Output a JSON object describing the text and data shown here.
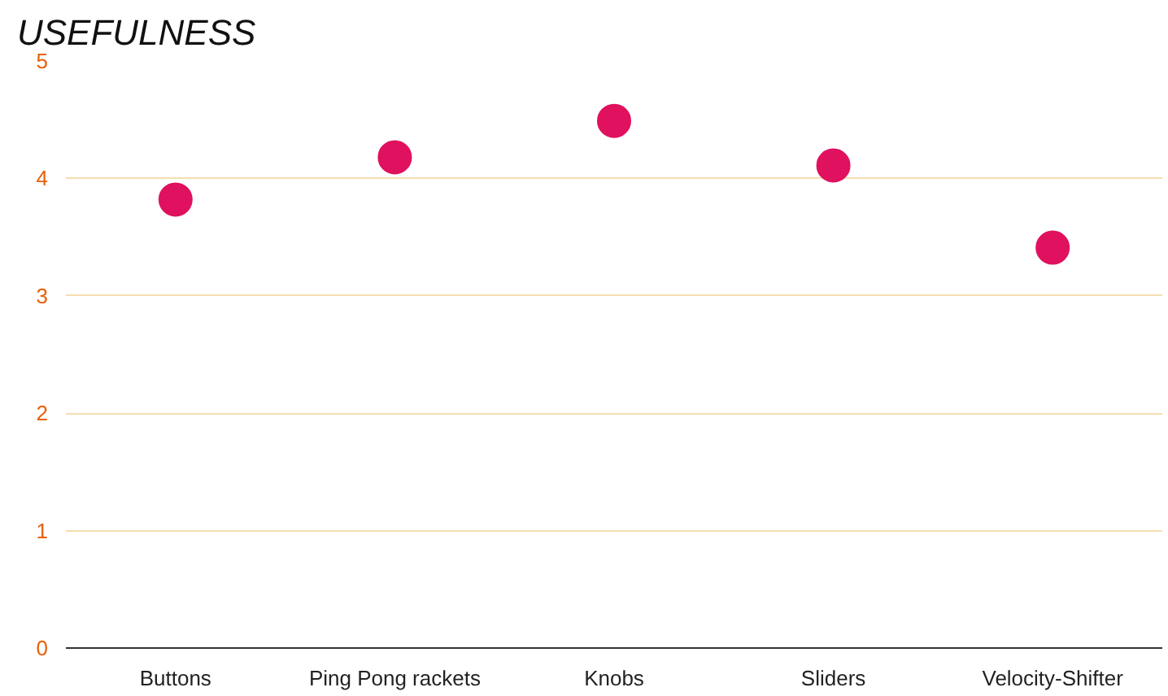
{
  "chart_data": {
    "type": "scatter",
    "title": "USEFULNESS",
    "categories": [
      "Buttons",
      "Ping Pong rackets",
      "Knobs",
      "Sliders",
      "Velocity-Shifter"
    ],
    "series": [
      {
        "color": "#e0115f",
        "values": [
          3.82,
          4.18,
          4.49,
          4.11,
          3.41
        ]
      }
    ],
    "ylim": [
      0,
      5
    ],
    "yticks": [
      0,
      1,
      2,
      3,
      4,
      5
    ],
    "grid": "y",
    "marker": "circle"
  }
}
